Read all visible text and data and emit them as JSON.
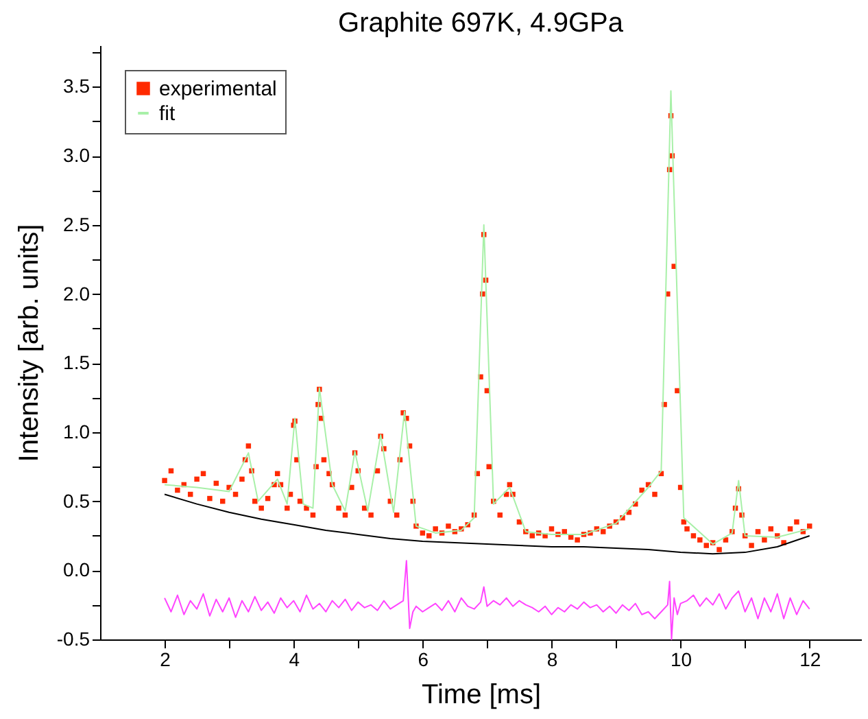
{
  "chart_data": {
    "type": "line",
    "title": "Graphite 697K, 4.9GPa",
    "xlabel": "Time [ms]",
    "ylabel": "Intensity [arb. units]",
    "xlim": [
      1,
      12.8
    ],
    "ylim": [
      -0.5,
      3.8
    ],
    "xticks": [
      2,
      {
        "value": 3,
        "label": null
      },
      4,
      {
        "value": 5,
        "label": null
      },
      6,
      {
        "value": 7,
        "label": null
      },
      8,
      {
        "value": 9,
        "label": null
      },
      10,
      {
        "value": 11,
        "label": null
      },
      12
    ],
    "yticks": [
      {
        "value": -0.5,
        "label": "-0.5"
      },
      {
        "value": -0.25,
        "label": null
      },
      {
        "value": 0,
        "label": "0.0"
      },
      {
        "value": 0.25,
        "label": null
      },
      0.5,
      {
        "value": 0.75,
        "label": null
      },
      {
        "value": 1,
        "label": "1.0"
      },
      {
        "value": 1.25,
        "label": null
      },
      1.5,
      {
        "value": 1.75,
        "label": null
      },
      {
        "value": 2,
        "label": "2.0"
      },
      {
        "value": 2.25,
        "label": null
      },
      2.5,
      {
        "value": 2.75,
        "label": null
      },
      {
        "value": 3,
        "label": "3.0"
      },
      {
        "value": 3.25,
        "label": null
      },
      3.5,
      {
        "value": 3.75,
        "label": null
      }
    ],
    "grid": false,
    "legend": "top left",
    "series": [
      {
        "name": "experimental",
        "type": "scatter",
        "marker": "square",
        "color": "#ff2a00",
        "x": [
          2.0,
          2.1,
          2.2,
          2.3,
          2.4,
          2.5,
          2.6,
          2.7,
          2.8,
          2.9,
          3.0,
          3.1,
          3.2,
          3.25,
          3.3,
          3.35,
          3.4,
          3.5,
          3.6,
          3.7,
          3.75,
          3.8,
          3.9,
          3.95,
          4.0,
          4.02,
          4.05,
          4.1,
          4.2,
          4.3,
          4.35,
          4.38,
          4.4,
          4.43,
          4.47,
          4.55,
          4.6,
          4.7,
          4.8,
          4.9,
          4.95,
          5.0,
          5.1,
          5.2,
          5.3,
          5.35,
          5.4,
          5.5,
          5.6,
          5.65,
          5.7,
          5.75,
          5.8,
          5.85,
          5.9,
          6.0,
          6.1,
          6.2,
          6.3,
          6.4,
          6.5,
          6.6,
          6.7,
          6.8,
          6.85,
          6.9,
          6.93,
          6.95,
          6.98,
          7.0,
          7.03,
          7.1,
          7.2,
          7.3,
          7.35,
          7.4,
          7.5,
          7.6,
          7.7,
          7.8,
          7.9,
          8.0,
          8.1,
          8.2,
          8.3,
          8.4,
          8.5,
          8.6,
          8.7,
          8.8,
          8.9,
          9.0,
          9.1,
          9.2,
          9.3,
          9.4,
          9.5,
          9.6,
          9.7,
          9.75,
          9.8,
          9.83,
          9.85,
          9.87,
          9.9,
          9.95,
          10.0,
          10.05,
          10.1,
          10.2,
          10.3,
          10.4,
          10.5,
          10.6,
          10.7,
          10.8,
          10.85,
          10.9,
          10.95,
          11.0,
          11.1,
          11.2,
          11.3,
          11.4,
          11.5,
          11.6,
          11.7,
          11.8,
          11.9,
          12.0
        ],
        "values": [
          0.65,
          0.72,
          0.58,
          0.62,
          0.55,
          0.66,
          0.7,
          0.52,
          0.63,
          0.5,
          0.6,
          0.55,
          0.66,
          0.8,
          0.9,
          0.72,
          0.5,
          0.45,
          0.52,
          0.62,
          0.7,
          0.62,
          0.45,
          0.55,
          1.05,
          1.08,
          0.8,
          0.5,
          0.45,
          0.4,
          0.75,
          1.2,
          1.31,
          1.1,
          0.8,
          0.7,
          0.62,
          0.45,
          0.4,
          0.6,
          0.85,
          0.72,
          0.45,
          0.4,
          0.72,
          0.97,
          0.88,
          0.5,
          0.4,
          0.8,
          1.14,
          1.1,
          0.9,
          0.5,
          0.32,
          0.27,
          0.25,
          0.3,
          0.27,
          0.32,
          0.28,
          0.3,
          0.33,
          0.4,
          0.7,
          1.4,
          2.0,
          2.43,
          2.1,
          1.3,
          0.75,
          0.5,
          0.4,
          0.55,
          0.62,
          0.55,
          0.35,
          0.28,
          0.25,
          0.27,
          0.25,
          0.3,
          0.26,
          0.28,
          0.24,
          0.22,
          0.26,
          0.27,
          0.3,
          0.28,
          0.32,
          0.35,
          0.38,
          0.42,
          0.48,
          0.58,
          0.62,
          0.55,
          0.7,
          1.2,
          2.0,
          2.9,
          3.29,
          3.0,
          2.2,
          1.3,
          0.6,
          0.35,
          0.3,
          0.25,
          0.22,
          0.18,
          0.2,
          0.15,
          0.22,
          0.28,
          0.45,
          0.59,
          0.4,
          0.25,
          0.18,
          0.28,
          0.22,
          0.3,
          0.25,
          0.2,
          0.3,
          0.35,
          0.28,
          0.32
        ]
      },
      {
        "name": "fit",
        "marker": "none",
        "line_style": "solid",
        "color": "#a8f0a8",
        "x": [
          2.0,
          2.5,
          3.0,
          3.3,
          3.45,
          3.75,
          3.9,
          4.02,
          4.15,
          4.3,
          4.4,
          4.6,
          4.8,
          4.95,
          5.15,
          5.35,
          5.55,
          5.72,
          5.9,
          6.2,
          6.6,
          6.8,
          6.95,
          7.1,
          7.35,
          7.6,
          8.0,
          8.5,
          9.0,
          9.5,
          9.7,
          9.85,
          10.05,
          10.5,
          10.8,
          10.9,
          11.0,
          11.5,
          12.0
        ],
        "values": [
          0.62,
          0.6,
          0.57,
          0.85,
          0.5,
          0.66,
          0.48,
          1.1,
          0.48,
          0.45,
          1.32,
          0.62,
          0.43,
          0.86,
          0.43,
          0.98,
          0.42,
          1.15,
          0.32,
          0.27,
          0.29,
          0.38,
          2.5,
          0.48,
          0.6,
          0.28,
          0.26,
          0.26,
          0.34,
          0.6,
          0.72,
          3.47,
          0.38,
          0.19,
          0.27,
          0.65,
          0.25,
          0.24,
          0.3
        ]
      },
      {
        "marker": "none",
        "line_style": "solid",
        "color": "#000000",
        "x": [
          2,
          2.5,
          3,
          3.5,
          4,
          4.5,
          5,
          5.5,
          6,
          6.5,
          7,
          7.5,
          8,
          8.5,
          9,
          9.5,
          10,
          10.5,
          11,
          11.5,
          12
        ],
        "values": [
          0.55,
          0.48,
          0.42,
          0.37,
          0.33,
          0.29,
          0.26,
          0.23,
          0.21,
          0.2,
          0.19,
          0.18,
          0.17,
          0.17,
          0.16,
          0.15,
          0.13,
          0.12,
          0.13,
          0.17,
          0.25
        ]
      },
      {
        "marker": "none",
        "line_style": "solid",
        "color": "#ff44ff",
        "x": [
          2.0,
          2.1,
          2.2,
          2.3,
          2.4,
          2.5,
          2.6,
          2.7,
          2.8,
          2.9,
          3.0,
          3.1,
          3.2,
          3.3,
          3.4,
          3.5,
          3.6,
          3.7,
          3.8,
          3.9,
          4.0,
          4.1,
          4.2,
          4.3,
          4.4,
          4.5,
          4.6,
          4.7,
          4.8,
          4.9,
          5.0,
          5.1,
          5.2,
          5.3,
          5.4,
          5.5,
          5.6,
          5.7,
          5.75,
          5.8,
          5.85,
          5.9,
          6.0,
          6.1,
          6.2,
          6.3,
          6.4,
          6.5,
          6.6,
          6.7,
          6.8,
          6.9,
          6.95,
          7.0,
          7.1,
          7.2,
          7.3,
          7.4,
          7.5,
          7.6,
          7.7,
          7.8,
          7.9,
          8.0,
          8.1,
          8.2,
          8.3,
          8.4,
          8.5,
          8.6,
          8.7,
          8.8,
          8.9,
          9.0,
          9.1,
          9.2,
          9.3,
          9.4,
          9.5,
          9.6,
          9.7,
          9.8,
          9.83,
          9.86,
          9.9,
          9.95,
          10.0,
          10.1,
          10.2,
          10.3,
          10.4,
          10.5,
          10.6,
          10.7,
          10.8,
          10.9,
          11.0,
          11.1,
          11.2,
          11.3,
          11.4,
          11.5,
          11.6,
          11.7,
          11.8,
          11.9,
          12.0
        ],
        "values": [
          -0.2,
          -0.3,
          -0.18,
          -0.32,
          -0.22,
          -0.28,
          -0.17,
          -0.33,
          -0.21,
          -0.3,
          -0.2,
          -0.34,
          -0.22,
          -0.3,
          -0.19,
          -0.29,
          -0.23,
          -0.31,
          -0.2,
          -0.27,
          -0.22,
          -0.3,
          -0.18,
          -0.28,
          -0.24,
          -0.3,
          -0.22,
          -0.27,
          -0.21,
          -0.29,
          -0.23,
          -0.27,
          -0.25,
          -0.29,
          -0.22,
          -0.28,
          -0.25,
          -0.22,
          0.07,
          -0.42,
          -0.3,
          -0.26,
          -0.3,
          -0.27,
          -0.24,
          -0.29,
          -0.22,
          -0.3,
          -0.2,
          -0.26,
          -0.28,
          -0.23,
          -0.12,
          -0.26,
          -0.22,
          -0.25,
          -0.2,
          -0.26,
          -0.22,
          -0.25,
          -0.27,
          -0.3,
          -0.26,
          -0.32,
          -0.27,
          -0.3,
          -0.25,
          -0.28,
          -0.23,
          -0.27,
          -0.25,
          -0.3,
          -0.26,
          -0.31,
          -0.25,
          -0.29,
          -0.24,
          -0.32,
          -0.3,
          -0.35,
          -0.3,
          -0.25,
          -0.08,
          -0.5,
          -0.2,
          -0.32,
          -0.24,
          -0.22,
          -0.18,
          -0.26,
          -0.2,
          -0.25,
          -0.17,
          -0.28,
          -0.2,
          -0.15,
          -0.3,
          -0.2,
          -0.35,
          -0.2,
          -0.3,
          -0.17,
          -0.35,
          -0.2,
          -0.32,
          -0.22,
          -0.28
        ]
      }
    ]
  }
}
